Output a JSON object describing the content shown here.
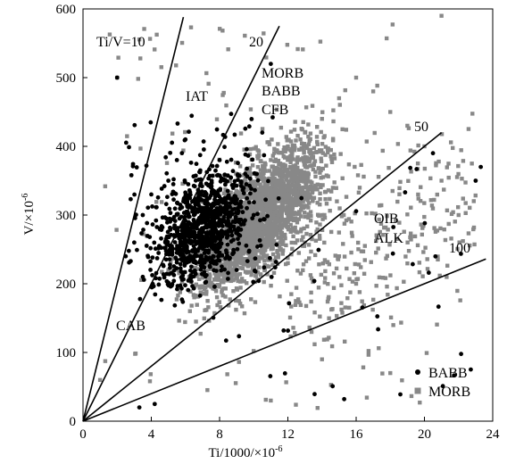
{
  "chart_data": {
    "type": "scatter",
    "title": "",
    "xlabel": "Ti/1000/×10",
    "xlabel_sup": "-6",
    "ylabel": "V/×10",
    "ylabel_sup": "-6",
    "xlim": [
      0,
      24
    ],
    "ylim": [
      0,
      600
    ],
    "x_ticks": [
      "0",
      "4",
      "8",
      "12",
      "16",
      "20",
      "24"
    ],
    "y_ticks": [
      "0",
      "100",
      "200",
      "300",
      "400",
      "500",
      "600"
    ],
    "grid": false,
    "legend_position": "bottom-right",
    "series": [
      {
        "name": "BABB",
        "marker": "circle",
        "color": "#000000",
        "points_sample": [
          [
            2.5,
            240
          ],
          [
            3,
            260
          ],
          [
            3.5,
            300
          ],
          [
            4,
            330
          ],
          [
            4.5,
            280
          ],
          [
            5,
            350
          ],
          [
            5.5,
            380
          ],
          [
            6,
            410
          ],
          [
            6.5,
            300
          ],
          [
            7,
            260
          ],
          [
            7.5,
            340
          ],
          [
            8,
            380
          ],
          [
            8.5,
            290
          ],
          [
            9,
            220
          ],
          [
            9.5,
            360
          ],
          [
            10,
            300
          ],
          [
            10.5,
            420
          ],
          [
            11,
            520
          ],
          [
            3.5,
            210
          ],
          [
            4.2,
            25
          ],
          [
            3.3,
            20
          ],
          [
            2,
            500
          ],
          [
            10,
            600
          ],
          [
            20.5,
            390
          ],
          [
            23.3,
            370
          ],
          [
            23,
            350
          ]
        ]
      },
      {
        "name": "MORB",
        "marker": "square",
        "color": "#888888",
        "points_sample": [
          [
            5,
            220
          ],
          [
            6,
            240
          ],
          [
            7,
            260
          ],
          [
            8,
            300
          ],
          [
            9,
            330
          ],
          [
            10,
            360
          ],
          [
            11,
            380
          ],
          [
            12,
            400
          ],
          [
            13,
            420
          ],
          [
            14,
            440
          ],
          [
            15,
            470
          ],
          [
            16,
            500
          ],
          [
            17,
            480
          ],
          [
            18,
            450
          ],
          [
            19,
            430
          ],
          [
            20,
            400
          ],
          [
            21,
            350
          ],
          [
            22,
            300
          ],
          [
            13,
            260
          ],
          [
            14,
            300
          ],
          [
            15,
            240
          ],
          [
            16,
            200
          ],
          [
            12,
            230
          ],
          [
            2,
            500
          ],
          [
            20,
            600
          ],
          [
            21,
            590
          ],
          [
            1,
            60
          ],
          [
            11,
            30
          ],
          [
            14,
            90
          ],
          [
            18,
            70
          ]
        ]
      }
    ],
    "reference_lines": [
      {
        "label": "Ti/V=10",
        "ratio": 10
      },
      {
        "label": "20",
        "ratio": 20
      },
      {
        "label": "50",
        "ratio": 50
      },
      {
        "label": "100",
        "ratio": 100
      }
    ],
    "field_labels": [
      {
        "text": "IAT"
      },
      {
        "text": "MORB"
      },
      {
        "text": "BABB"
      },
      {
        "text": "CFB"
      },
      {
        "text": "OIB"
      },
      {
        "text": "ALK"
      },
      {
        "text": "CAB"
      }
    ],
    "legend": [
      {
        "name": "BABB",
        "marker": "circle"
      },
      {
        "name": "MORB",
        "marker": "square"
      }
    ]
  }
}
